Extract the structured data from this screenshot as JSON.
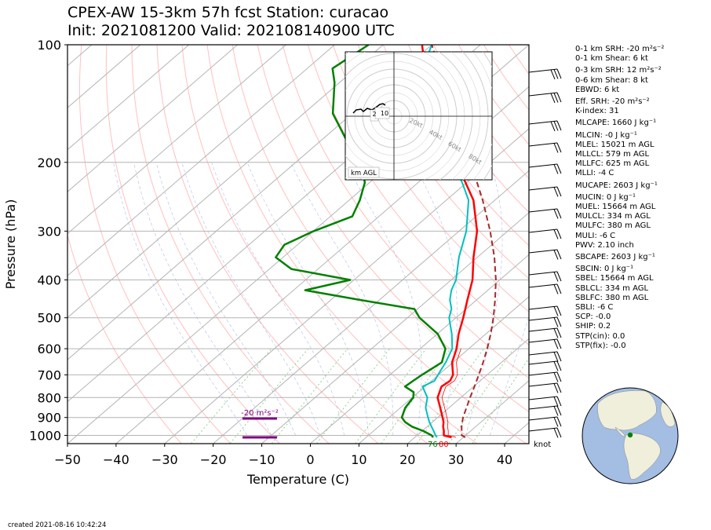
{
  "title": {
    "line1": "CPEX-AW 15-3km  57h fcst  Station: curacao",
    "line2": "Init: 2021081200  Valid: 202108140900 UTC"
  },
  "footer": {
    "created": "created 2021-08-16 10:42:24"
  },
  "colors": {
    "temperature": "#ff0000",
    "dewpoint": "#008000",
    "wetbulb": "#00c0c0",
    "parcel": "#a52a2a",
    "isotherm": "#b4b4b4",
    "dry_adiabat": "#ffc0c0",
    "mixing_ratio": "#8fd48f",
    "srh_bar": "#800080",
    "globe_ocean": "#a3bde3",
    "globe_land": "#f0efdc"
  },
  "chart_data": {
    "type": "line",
    "subtype": "skew-T log-P",
    "xlabel": "Temperature (C)",
    "ylabel": "Pressure (hPa)",
    "xlim": [
      -50,
      45
    ],
    "ylim": [
      1050,
      100
    ],
    "y_scale": "log",
    "x_ticks": [
      "−50",
      "−40",
      "−30",
      "−20",
      "−10",
      "0",
      "10",
      "20",
      "30",
      "40"
    ],
    "x_tick_values": [
      -50,
      -40,
      -30,
      -20,
      -10,
      0,
      10,
      20,
      30,
      40
    ],
    "y_ticks": [
      "100",
      "200",
      "300",
      "400",
      "500",
      "600",
      "700",
      "800",
      "900",
      "1000"
    ],
    "y_tick_values": [
      100,
      200,
      300,
      400,
      500,
      600,
      700,
      800,
      900,
      1000
    ],
    "grid": true,
    "series": [
      {
        "key": "temperature",
        "points": [
          [
            1012,
            27.6
          ],
          [
            1000,
            25.5
          ],
          [
            975,
            24.5
          ],
          [
            950,
            23.3
          ],
          [
            925,
            22.3
          ],
          [
            900,
            21.0
          ],
          [
            850,
            18.2
          ],
          [
            800,
            15.2
          ],
          [
            750,
            13.4
          ],
          [
            725,
            13.8
          ],
          [
            700,
            13.0
          ],
          [
            650,
            9.8
          ],
          [
            600,
            7.5
          ],
          [
            550,
            4.4
          ],
          [
            500,
            1.5
          ],
          [
            450,
            -1.9
          ],
          [
            400,
            -5.6
          ],
          [
            350,
            -10.8
          ],
          [
            300,
            -16.3
          ],
          [
            250,
            -24.4
          ],
          [
            225,
            -30.3
          ],
          [
            200,
            -37.3
          ],
          [
            175,
            -44.0
          ],
          [
            150,
            -52.0
          ],
          [
            125,
            -62.0
          ],
          [
            100,
            -72.0
          ]
        ]
      },
      {
        "key": "dewpoint",
        "points": [
          [
            1012,
            23.8
          ],
          [
            1000,
            23.0
          ],
          [
            975,
            20.3
          ],
          [
            950,
            16.9
          ],
          [
            925,
            14.4
          ],
          [
            900,
            12.6
          ],
          [
            850,
            11.0
          ],
          [
            800,
            10.2
          ],
          [
            775,
            9.0
          ],
          [
            750,
            5.9
          ],
          [
            725,
            6.2
          ],
          [
            700,
            6.6
          ],
          [
            650,
            7.7
          ],
          [
            600,
            5.2
          ],
          [
            550,
            0.1
          ],
          [
            500,
            -7.5
          ],
          [
            475,
            -10.6
          ],
          [
            450,
            -24.1
          ],
          [
            425,
            -37.6
          ],
          [
            400,
            -30.8
          ],
          [
            375,
            -45.5
          ],
          [
            350,
            -51.5
          ],
          [
            325,
            -52.7
          ],
          [
            300,
            -49.9
          ],
          [
            275,
            -45.5
          ],
          [
            250,
            -47.8
          ],
          [
            225,
            -51.0
          ],
          [
            200,
            -57.0
          ],
          [
            175,
            -65.0
          ],
          [
            150,
            -74.0
          ],
          [
            125,
            -81.0
          ],
          [
            115,
            -84.8
          ],
          [
            100,
            -83.0
          ]
        ]
      },
      {
        "key": "wetbulb",
        "points": [
          [
            1012,
            24.6
          ],
          [
            1000,
            23.8
          ],
          [
            975,
            22.4
          ],
          [
            950,
            20.9
          ],
          [
            925,
            19.4
          ],
          [
            900,
            18.0
          ],
          [
            850,
            15.2
          ],
          [
            800,
            13.1
          ],
          [
            750,
            9.5
          ],
          [
            725,
            10.6
          ],
          [
            700,
            9.9
          ],
          [
            650,
            8.5
          ],
          [
            600,
            6.6
          ],
          [
            550,
            3.0
          ],
          [
            500,
            -1.4
          ],
          [
            475,
            -3.0
          ],
          [
            450,
            -5.5
          ],
          [
            425,
            -7.5
          ],
          [
            400,
            -9.0
          ],
          [
            350,
            -13.8
          ],
          [
            300,
            -18.5
          ],
          [
            250,
            -25.4
          ],
          [
            225,
            -31.0
          ],
          [
            200,
            -38.0
          ],
          [
            175,
            -45.0
          ],
          [
            150,
            -53.0
          ],
          [
            125,
            -62.0
          ],
          [
            115,
            -66.2
          ],
          [
            100,
            -70.0
          ]
        ]
      },
      {
        "key": "parcel",
        "points": [
          [
            1012,
            30.4
          ],
          [
            1000,
            29.2
          ],
          [
            950,
            27.1
          ],
          [
            900,
            25.2
          ],
          [
            850,
            23.6
          ],
          [
            800,
            21.9
          ],
          [
            750,
            20.2
          ],
          [
            700,
            18.3
          ],
          [
            650,
            16.2
          ],
          [
            600,
            13.8
          ],
          [
            550,
            11.0
          ],
          [
            500,
            7.7
          ],
          [
            450,
            3.8
          ],
          [
            400,
            -0.8
          ],
          [
            350,
            -6.5
          ],
          [
            300,
            -13.6
          ],
          [
            250,
            -22.5
          ],
          [
            200,
            -34.0
          ],
          [
            150,
            -49.0
          ],
          [
            125,
            -58.5
          ],
          [
            100,
            -70.0
          ]
        ]
      }
    ],
    "surface_labels": {
      "temperature": "80",
      "dewpoint": "76"
    },
    "hodograph": {
      "rings": [
        "20kt",
        "40kt",
        "60kt",
        "80kt"
      ],
      "labels": [
        "2",
        "10"
      ],
      "legend": "km AGL"
    },
    "wind_unit_label": "knot",
    "srh_label": "-20 m²s⁻²"
  },
  "indices": [
    "0-1 km SRH: -20 m²s⁻²",
    "0-1 km Shear: 6 kt",
    "0-3 km SRH: 12 m²s⁻²",
    "0-6 km Shear: 8 kt",
    "EBWD: 6 kt",
    "Eff. SRH: -20 m²s⁻²",
    "K-index: 31",
    "MLCAPE: 1660 J kg⁻¹",
    "MLCIN: -0 J kg⁻¹",
    "MLEL: 15021 m AGL",
    "MLLCL: 579 m AGL",
    "MLLFC: 625 m AGL",
    "MLLI: -4 C",
    "MUCAPE: 2603 J kg⁻¹",
    "MUCIN: 0 J kg⁻¹",
    "MUEL: 15664 m AGL",
    "MULCL: 334 m AGL",
    "MULFC: 380 m AGL",
    "MULI: -6 C",
    "PWV: 2.10 inch",
    "SBCAPE: 2603 J kg⁻¹",
    "SBCIN: 0 J kg⁻¹",
    "SBEL: 15664 m AGL",
    "SBLCL: 334 m AGL",
    "SBLFC: 380 m AGL",
    "SBLI: -6 C",
    "SCP: -0.0",
    "SHIP: 0.2",
    "STP(cin): 0.0",
    "STP(fix): -0.0"
  ]
}
